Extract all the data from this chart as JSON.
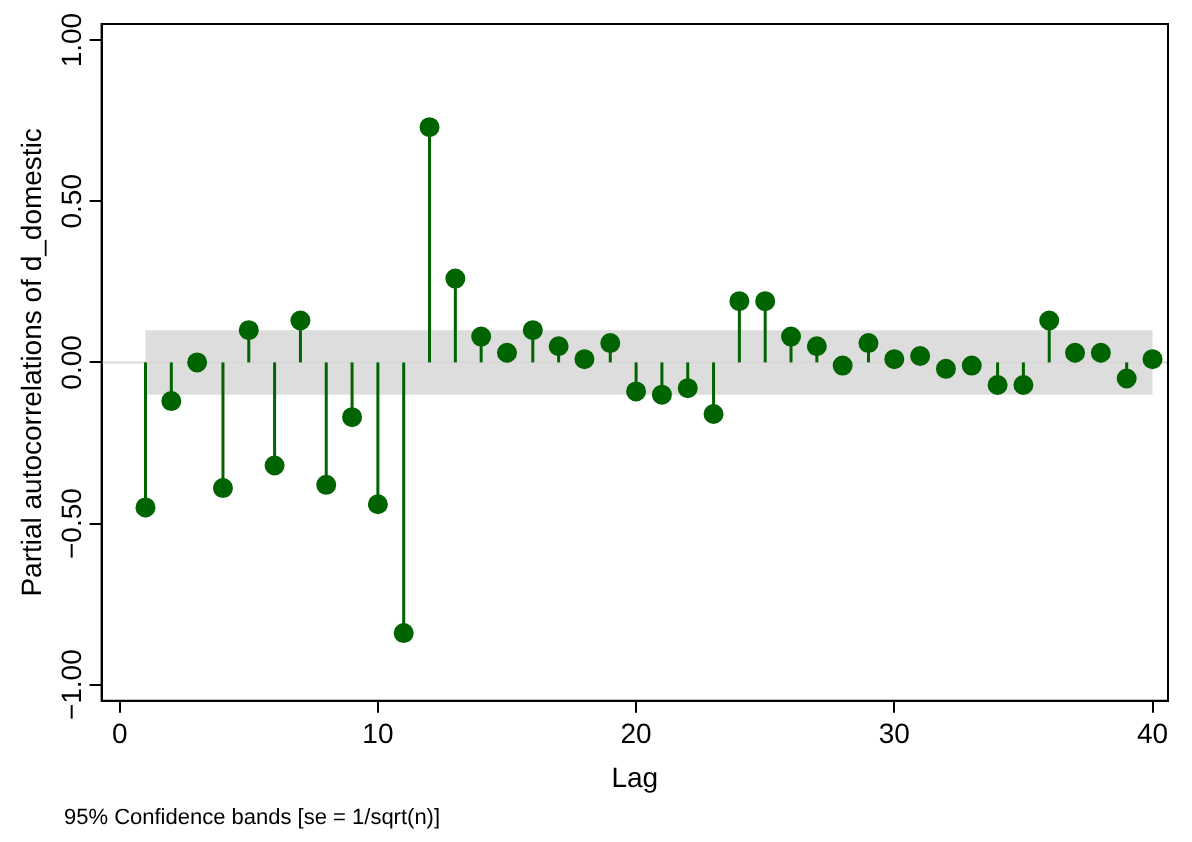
{
  "chart_data": {
    "type": "lollipop",
    "xlabel": "Lag",
    "ylabel": "Partial autocorrelations of d_domestic",
    "x": [
      1,
      2,
      3,
      4,
      5,
      6,
      7,
      8,
      9,
      10,
      11,
      12,
      13,
      14,
      15,
      16,
      17,
      18,
      19,
      20,
      21,
      22,
      23,
      24,
      25,
      26,
      27,
      28,
      29,
      30,
      31,
      32,
      33,
      34,
      35,
      36,
      37,
      38,
      39,
      40
    ],
    "series": [
      {
        "color": "#006400",
        "values": [
          -0.45,
          -0.12,
          0.0,
          -0.39,
          0.1,
          -0.32,
          0.13,
          -0.38,
          -0.17,
          -0.44,
          -0.84,
          0.73,
          0.26,
          0.08,
          0.03,
          0.1,
          0.05,
          0.01,
          0.06,
          -0.09,
          -0.1,
          -0.08,
          -0.16,
          0.19,
          0.19,
          0.08,
          0.05,
          -0.01,
          0.06,
          0.01,
          0.02,
          -0.02,
          -0.01,
          -0.07,
          -0.07,
          0.13,
          0.03,
          0.03,
          -0.05,
          0.01
        ]
      }
    ],
    "xlim": [
      -0.7,
      40.6
    ],
    "xticks": [
      0,
      10,
      20,
      30,
      40
    ],
    "ylim": [
      -1.05,
      1.05
    ],
    "yticks": [
      {
        "value": -1,
        "label": "−1.00"
      },
      {
        "value": -0.5,
        "label": "−0.50"
      },
      {
        "value": 0,
        "label": "0.00"
      },
      {
        "value": 0.5,
        "label": "0.50"
      },
      {
        "value": 1,
        "label": "1.00"
      }
    ],
    "bands": [
      {
        "axis": "y",
        "from": -0.1,
        "to": 0.1,
        "color": "#dddddd"
      }
    ],
    "ref_lines": [
      {
        "axis": "y",
        "value": 0,
        "color": "#d8d8d8"
      }
    ],
    "marker": "circle",
    "grid": false,
    "legend": false,
    "annotations": [
      "95% Confidence bands [se = 1/sqrt(n)]"
    ]
  }
}
